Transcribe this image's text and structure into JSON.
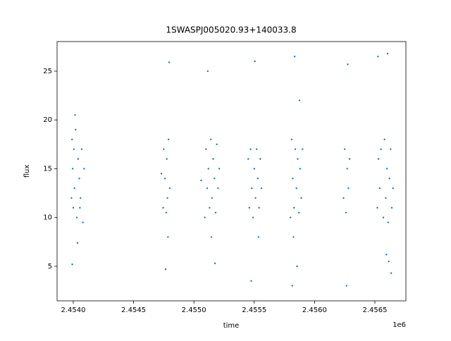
{
  "chart_data": {
    "type": "scatter",
    "title": "1SWASPJ005020.93+140033.8",
    "x_label": "time",
    "y_label": "flux",
    "x_offset_label": "1e6",
    "color": "#1f77b4",
    "xlim": [
      2453866,
      2456757
    ],
    "ylim": [
      1.46,
      28.03
    ],
    "xticks": [
      {
        "value": 2454000,
        "label": "2.4540"
      },
      {
        "value": 2454500,
        "label": "2.4545"
      },
      {
        "value": 2455000,
        "label": "2.4550"
      },
      {
        "value": 2455500,
        "label": "2.4555"
      },
      {
        "value": 2456000,
        "label": "2.4560"
      },
      {
        "value": 2456500,
        "label": "2.4565"
      }
    ],
    "yticks": [
      5,
      10,
      15,
      20,
      25
    ],
    "x": [
      2453985,
      2453990,
      2453995,
      2454000,
      2454005,
      2454010,
      2454020,
      2454030,
      2454040,
      2454050,
      2454060,
      2454070,
      2454080,
      2454090,
      2453992,
      2454015,
      2454035,
      2454055,
      2454745,
      2454750,
      2454760,
      2454770,
      2454775,
      2454780,
      2454790,
      2454800,
      2454765,
      2454785,
      2454795,
      2454730,
      2455090,
      2455100,
      2455110,
      2455120,
      2455130,
      2455140,
      2455150,
      2455160,
      2455170,
      2455180,
      2455190,
      2455200,
      2455210,
      2455115,
      2455145,
      2455175,
      2455060,
      2455450,
      2455460,
      2455470,
      2455480,
      2455490,
      2455500,
      2455510,
      2455520,
      2455530,
      2455540,
      2455550,
      2455560,
      2455475,
      2455505,
      2455535,
      2455800,
      2455810,
      2455820,
      2455830,
      2455840,
      2455850,
      2455860,
      2455870,
      2455880,
      2455890,
      2455900,
      2455815,
      2455835,
      2455855,
      2455875,
      2455825,
      2456240,
      2456250,
      2456260,
      2456270,
      2456280,
      2456290,
      2456265,
      2456275,
      2456520,
      2456530,
      2456540,
      2456550,
      2456570,
      2456580,
      2456590,
      2456600,
      2456610,
      2456620,
      2456630,
      2456640,
      2456650,
      2456525,
      2456595,
      2456605,
      2456615,
      2456635
    ],
    "y": [
      12,
      18,
      15,
      11,
      17,
      13,
      19,
      10,
      16,
      14,
      12,
      17,
      9.5,
      15,
      5.2,
      20.5,
      7.4,
      11,
      11,
      17,
      14,
      10.5,
      16,
      12,
      18,
      13,
      4.7,
      8,
      25.9,
      14.5,
      10,
      17,
      13,
      15,
      11,
      18,
      12,
      16,
      14,
      10.5,
      17.5,
      13,
      15,
      25,
      8,
      5.3,
      13.8,
      16,
      11,
      17,
      13,
      10,
      15,
      12,
      17,
      14,
      11,
      16,
      13,
      3.5,
      26,
      8,
      10,
      18,
      14,
      11,
      17,
      13,
      16,
      10.5,
      15,
      12,
      17,
      3,
      26.5,
      5,
      22,
      8,
      12,
      17,
      10.5,
      15,
      13,
      16,
      3,
      25.7,
      11,
      16,
      13,
      17,
      10,
      18,
      12,
      15,
      9.5,
      14,
      17,
      11,
      13,
      26.5,
      6.2,
      26.8,
      5.5,
      4.3
    ]
  }
}
